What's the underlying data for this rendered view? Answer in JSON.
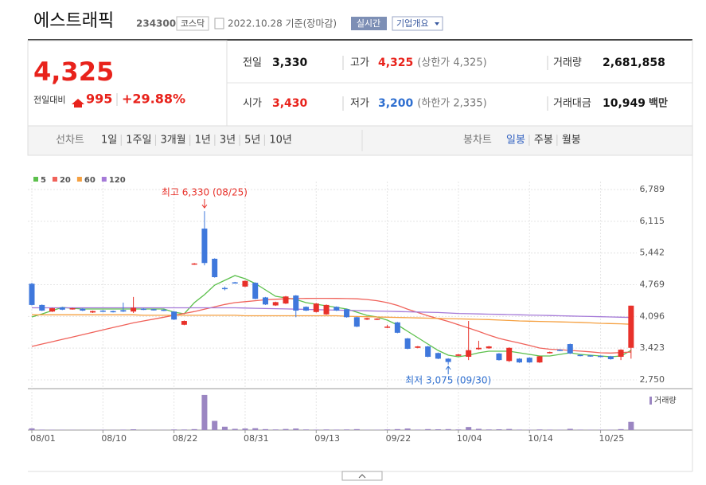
{
  "header": {
    "name": "에스트래픽",
    "code": "234300",
    "market": "코스닥",
    "date": "2022.10.28 기준(장마감)",
    "realtime": "실시간",
    "company_info": "기업개요"
  },
  "quote": {
    "price": "4,325",
    "change_label": "전일대비",
    "change": "995",
    "change_pct": "+29.88%"
  },
  "summary": [
    {
      "label": "전일",
      "value": "3,330"
    },
    {
      "label": "고가",
      "value": "4,325",
      "extra": "(상한가 4,325)"
    },
    {
      "label": "거래량",
      "value": "2,681,858"
    },
    {
      "label": "시가",
      "value": "3,430"
    },
    {
      "label": "저가",
      "value": "3,200",
      "extra": "(하한가 2,335)"
    },
    {
      "label": "거래대금",
      "value": "10,949",
      "unit": "백만"
    }
  ],
  "tabs": {
    "line_chart": "선차트",
    "periods": [
      "1일",
      "1주일",
      "3개월",
      "1년",
      "3년",
      "5년",
      "10년"
    ],
    "candle_chart": "봉차트",
    "candle_periods": [
      "일봉",
      "주봉",
      "월봉"
    ]
  },
  "chart_data": {
    "type": "candlestick",
    "x": [
      "08/01",
      null,
      null,
      null,
      null,
      null,
      null,
      "08/10",
      null,
      null,
      null,
      null,
      null,
      null,
      "08/22",
      null,
      null,
      null,
      null,
      null,
      null,
      "08/31",
      null,
      null,
      null,
      null,
      null,
      null,
      "09/13",
      null,
      null,
      null,
      null,
      null,
      null,
      "09/22",
      null,
      null,
      null,
      null,
      null,
      null,
      "10/04",
      null,
      null,
      null,
      null,
      null,
      null,
      "10/14",
      null,
      null,
      null,
      null,
      null,
      null,
      "10/25",
      null,
      null,
      null
    ],
    "open": [
      4790,
      4340,
      4200,
      4290,
      4250,
      4260,
      4180,
      4220,
      4210,
      4230,
      4200,
      4260,
      4250,
      4240,
      4200,
      3920,
      5200,
      5960,
      5320,
      4700,
      4820,
      4730,
      4810,
      4500,
      4330,
      4370,
      4540,
      4300,
      4190,
      4140,
      4300,
      4250,
      4080,
      4030,
      4030,
      3880,
      3970,
      3630,
      3430,
      3460,
      3320,
      3200,
      3260,
      3240,
      3400,
      3420,
      3310,
      3150,
      3200,
      3220,
      3120,
      3320,
      3390,
      3510,
      3280,
      3270,
      3260,
      3250,
      3240,
      3430
    ],
    "high": [
      4810,
      4350,
      4280,
      4300,
      4280,
      4270,
      4220,
      4230,
      4220,
      4390,
      4510,
      4270,
      4260,
      4250,
      4210,
      4010,
      5230,
      6330,
      5330,
      4730,
      4830,
      4860,
      4820,
      4510,
      4410,
      4530,
      4550,
      4310,
      4380,
      4350,
      4310,
      4260,
      4090,
      4070,
      4060,
      3920,
      3980,
      3640,
      3470,
      3470,
      3330,
      3210,
      3300,
      4000,
      3580,
      3470,
      3320,
      3440,
      3210,
      3230,
      3260,
      3350,
      3400,
      3520,
      3290,
      3280,
      3270,
      3260,
      3400,
      4325
    ],
    "low": [
      4330,
      4210,
      4190,
      4230,
      4240,
      4210,
      4170,
      4190,
      4180,
      4190,
      4170,
      4230,
      4220,
      4210,
      4020,
      3910,
      5190,
      5180,
      4920,
      4650,
      4800,
      4720,
      4460,
      4340,
      4320,
      4360,
      4080,
      4210,
      4180,
      4130,
      4210,
      4070,
      3870,
      4020,
      4020,
      3850,
      3740,
      3400,
      3420,
      3230,
      3190,
      3075,
      3250,
      3170,
      3390,
      3410,
      3160,
      3130,
      3110,
      3110,
      3110,
      3310,
      3360,
      3300,
      3250,
      3240,
      3230,
      3180,
      3170,
      3200
    ],
    "close": [
      4340,
      4220,
      4270,
      4240,
      4270,
      4220,
      4210,
      4200,
      4190,
      4200,
      4280,
      4240,
      4230,
      4220,
      4030,
      4000,
      5220,
      5230,
      4930,
      4690,
      4810,
      4850,
      4470,
      4350,
      4400,
      4520,
      4220,
      4220,
      4370,
      4340,
      4220,
      4080,
      3880,
      4060,
      4050,
      3880,
      3750,
      3410,
      3460,
      3240,
      3200,
      3130,
      3290,
      3380,
      3430,
      3460,
      3170,
      3430,
      3120,
      3120,
      3250,
      3340,
      3370,
      3310,
      3260,
      3250,
      3240,
      3190,
      3390,
      4325
    ],
    "up_color": "#e8312a",
    "down_color": "#3f78dc",
    "ylim": [
      2750,
      6789
    ],
    "yticks": [
      {
        "value": 2750,
        "label": "2,750"
      },
      {
        "value": 3423,
        "label": "3,423"
      },
      {
        "value": 4096,
        "label": "4,096"
      },
      {
        "value": 4769,
        "label": "4,769"
      },
      {
        "value": 5442,
        "label": "5,442"
      },
      {
        "value": 6115,
        "label": "6,115"
      },
      {
        "value": 6789,
        "label": "6,789"
      }
    ],
    "grid": true,
    "series": [
      {
        "name": "5",
        "color": "#5cc04c",
        "values": [
          4085,
          4150,
          4220,
          4288,
          4270,
          4254,
          4254,
          4254,
          4254,
          4254,
          4254,
          4254,
          4254,
          4254,
          4187,
          4153,
          4389,
          4558,
          4761,
          4863,
          4964,
          4896,
          4795,
          4660,
          4525,
          4491,
          4457,
          4389,
          4356,
          4322,
          4288,
          4254,
          4187,
          4119,
          4085,
          4018,
          3916,
          3781,
          3646,
          3511,
          3375,
          3274,
          3240,
          3274,
          3325,
          3358,
          3358,
          3358,
          3325,
          3291,
          3257,
          3257,
          3291,
          3325,
          3291,
          3274,
          3257,
          3240,
          3257,
          3375
        ]
      },
      {
        "name": "20",
        "color": "#f0625a",
        "values": [
          3460,
          3510,
          3560,
          3610,
          3660,
          3710,
          3760,
          3810,
          3860,
          3910,
          3960,
          4000,
          4040,
          4080,
          4120,
          4160,
          4200,
          4250,
          4300,
          4350,
          4390,
          4410,
          4430,
          4450,
          4460,
          4470,
          4475,
          4478,
          4480,
          4480,
          4478,
          4475,
          4470,
          4455,
          4430,
          4389,
          4330,
          4250,
          4180,
          4110,
          4050,
          3990,
          3920,
          3850,
          3780,
          3700,
          3630,
          3580,
          3530,
          3480,
          3426,
          3400,
          3390,
          3375,
          3360,
          3345,
          3325,
          3320,
          3330,
          3340
        ]
      },
      {
        "name": "60",
        "color": "#f5a040",
        "values": [
          4130,
          4130,
          4130,
          4130,
          4130,
          4130,
          4130,
          4130,
          4130,
          4130,
          4130,
          4120,
          4120,
          4120,
          4120,
          4120,
          4120,
          4120,
          4120,
          4120,
          4120,
          4110,
          4110,
          4110,
          4110,
          4110,
          4110,
          4110,
          4110,
          4110,
          4110,
          4100,
          4095,
          4090,
          4085,
          4080,
          4075,
          4070,
          4065,
          4060,
          4055,
          4050,
          4045,
          4040,
          4035,
          4030,
          4020,
          4010,
          4000,
          3995,
          3990,
          3985,
          3980,
          3975,
          3970,
          3960,
          3950,
          3945,
          3940,
          3930
        ]
      },
      {
        "name": "120",
        "color": "#a57ad8",
        "values": [
          4280,
          4280,
          4280,
          4280,
          4280,
          4280,
          4280,
          4280,
          4280,
          4280,
          4280,
          4280,
          4280,
          4280,
          4280,
          4280,
          4280,
          4280,
          4280,
          4280,
          4280,
          4275,
          4270,
          4265,
          4260,
          4255,
          4250,
          4245,
          4240,
          4235,
          4230,
          4225,
          4220,
          4215,
          4210,
          4205,
          4200,
          4195,
          4190,
          4185,
          4180,
          4170,
          4160,
          4155,
          4150,
          4145,
          4140,
          4135,
          4130,
          4125,
          4120,
          4115,
          4110,
          4105,
          4100,
          4095,
          4090,
          4085,
          4080,
          4075
        ]
      }
    ],
    "volume": {
      "name": "거래량",
      "color": "#9b86c2",
      "ylim": [
        0,
        12000000
      ],
      "values": [
        550000,
        150000,
        120000,
        100000,
        90000,
        80000,
        80000,
        90000,
        70000,
        150000,
        250000,
        80000,
        70000,
        70000,
        200000,
        180000,
        300000,
        11500000,
        3000000,
        1100000,
        400000,
        500000,
        600000,
        300000,
        200000,
        350000,
        500000,
        200000,
        150000,
        200000,
        150000,
        200000,
        300000,
        100000,
        100000,
        200000,
        300000,
        500000,
        150000,
        300000,
        250000,
        300000,
        200000,
        1000000,
        400000,
        200000,
        250000,
        350000,
        150000,
        120000,
        200000,
        150000,
        100000,
        400000,
        150000,
        100000,
        100000,
        100000,
        300000,
        2681858
      ]
    },
    "annotations": [
      {
        "text": "최고 6,330 (08/25)",
        "color": "#e8312a"
      },
      {
        "text": "최저 3,075 (09/30)",
        "color": "#2f6fd0"
      }
    ]
  }
}
